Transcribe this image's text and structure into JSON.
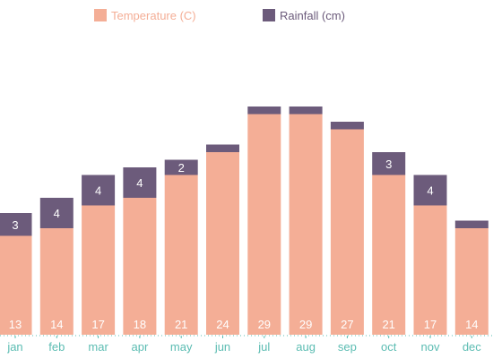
{
  "chart_data": {
    "type": "bar",
    "stacked": true,
    "categories": [
      "jan",
      "feb",
      "mar",
      "apr",
      "may",
      "jun",
      "jul",
      "aug",
      "sep",
      "oct",
      "nov",
      "dec"
    ],
    "series": [
      {
        "name": "Temperature (C)",
        "color": "#f4ae96",
        "label_color": "#ffffff",
        "values": [
          13,
          14,
          17,
          18,
          21,
          24,
          29,
          29,
          27,
          21,
          17,
          14
        ],
        "labels": [
          "13",
          "14",
          "17",
          "18",
          "21",
          "24",
          "29",
          "29",
          "27",
          "21",
          "17",
          "14"
        ]
      },
      {
        "name": "Rainfall (cm)",
        "color": "#6c5b7b",
        "label_color": "#ffffff",
        "values": [
          3,
          4,
          4,
          4,
          2,
          1,
          1,
          1,
          1,
          3,
          4,
          1
        ],
        "labels": [
          "3",
          "4",
          "4",
          "4",
          "2",
          "",
          "",
          "",
          "",
          "3",
          "4",
          ""
        ]
      }
    ],
    "legend_position": "top",
    "legend_text_colors": [
      "#f4ae96",
      "#6c5b7b"
    ],
    "tick_color": "#5bbcb2",
    "ylim": [
      0,
      37.5
    ],
    "grid": false
  }
}
